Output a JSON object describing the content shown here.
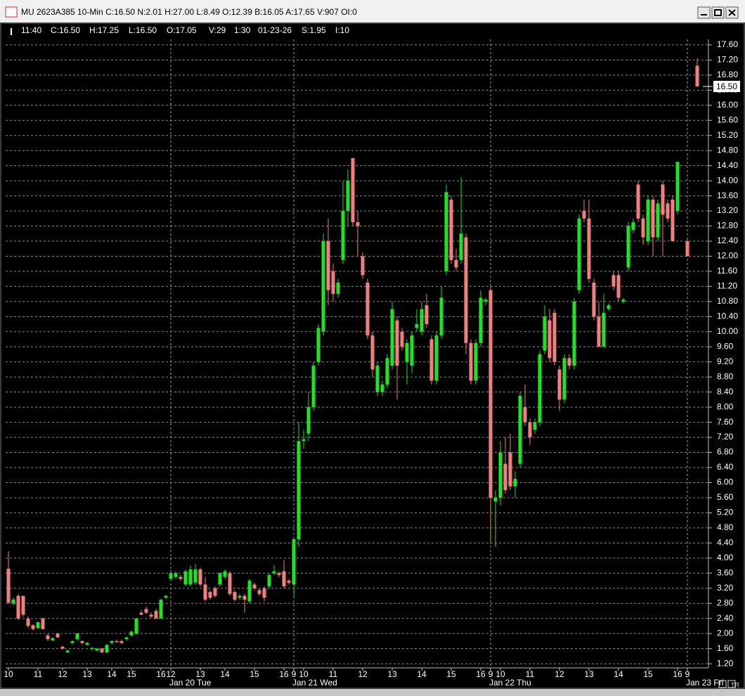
{
  "window": {
    "title": "MU 2623A385 10-Min C:16.50 N:2.01 H:27.00 L:8.49 O:12.39 B:16.05 A:17.65 V:907 OI:0"
  },
  "info_bar": [
    "11:40",
    "C:16.50",
    "H:17.25",
    "L:16.50",
    "O:17.05",
    "V:29",
    "1:30",
    "01-23-26",
    "S:1.95",
    "I:10"
  ],
  "status_tag": "TR",
  "chart_data": {
    "type": "candlestick",
    "up_color": "#22e022",
    "down_color": "#f08080",
    "grid": true,
    "ylim": [
      1.09,
      17.71
    ],
    "yticks": [
      {
        "value": 1.2,
        "label": "1.20"
      },
      {
        "value": 1.6,
        "label": "1.60"
      },
      {
        "value": 2,
        "label": "2.00"
      },
      {
        "value": 2.4,
        "label": "2.40"
      },
      {
        "value": 2.8,
        "label": "2.80"
      },
      {
        "value": 3.2,
        "label": "3.20"
      },
      {
        "value": 3.6,
        "label": "3.60"
      },
      {
        "value": 4,
        "label": "4.00"
      },
      {
        "value": 4.4,
        "label": "4.40"
      },
      {
        "value": 4.8,
        "label": "4.80"
      },
      {
        "value": 5.2,
        "label": "5.20"
      },
      {
        "value": 5.6,
        "label": "5.60"
      },
      {
        "value": 6,
        "label": "6.00"
      },
      {
        "value": 6.4,
        "label": "6.40"
      },
      {
        "value": 6.8,
        "label": "6.80"
      },
      {
        "value": 7.2,
        "label": "7.20"
      },
      {
        "value": 7.6,
        "label": "7.60"
      },
      {
        "value": 8,
        "label": "8.00"
      },
      {
        "value": 8.4,
        "label": "8.40"
      },
      {
        "value": 8.8,
        "label": "8.80"
      },
      {
        "value": 9.2,
        "label": "9.20"
      },
      {
        "value": 9.6,
        "label": "9.60"
      },
      {
        "value": 10,
        "label": "10.00"
      },
      {
        "value": 10.4,
        "label": "10.40"
      },
      {
        "value": 10.8,
        "label": "10.80"
      },
      {
        "value": 11.2,
        "label": "11.20"
      },
      {
        "value": 11.6,
        "label": "11.60"
      },
      {
        "value": 12,
        "label": "12.00"
      },
      {
        "value": 12.4,
        "label": "12.40"
      },
      {
        "value": 12.8,
        "label": "12.80"
      },
      {
        "value": 13.2,
        "label": "13.20"
      },
      {
        "value": 13.6,
        "label": "13.60"
      },
      {
        "value": 14,
        "label": "14.00"
      },
      {
        "value": 14.4,
        "label": "14.40"
      },
      {
        "value": 14.8,
        "label": "14.80"
      },
      {
        "value": 15.2,
        "label": "15.20"
      },
      {
        "value": 15.6,
        "label": "15.60"
      },
      {
        "value": 16,
        "label": "16.00"
      },
      {
        "value": 16.4,
        "label": "16.40"
      },
      {
        "value": 16.8,
        "label": "16.80"
      },
      {
        "value": 17.2,
        "label": "17.20"
      },
      {
        "value": 17.6,
        "label": "17.60"
      }
    ],
    "last_price": {
      "value": 16.5,
      "label": "16.50"
    },
    "categories": [
      "10",
      null,
      null,
      null,
      null,
      null,
      "11",
      null,
      null,
      null,
      null,
      "12",
      null,
      null,
      null,
      null,
      "13",
      null,
      null,
      null,
      null,
      "14",
      null,
      null,
      null,
      "15",
      null,
      null,
      null,
      null,
      null,
      "16",
      null,
      "12",
      null,
      null,
      null,
      null,
      null,
      "13",
      null,
      null,
      null,
      null,
      "14",
      null,
      null,
      null,
      null,
      null,
      "15",
      null,
      null,
      null,
      null,
      null,
      "16",
      null,
      "9",
      null,
      "10",
      null,
      null,
      null,
      null,
      null,
      "11",
      null,
      null,
      null,
      null,
      null,
      "12",
      null,
      null,
      null,
      null,
      null,
      "13",
      null,
      null,
      null,
      null,
      null,
      "14",
      null,
      null,
      null,
      null,
      null,
      "15",
      null,
      null,
      null,
      null,
      null,
      "16",
      null,
      "9",
      null,
      "10",
      null,
      null,
      null,
      null,
      null,
      "11",
      null,
      null,
      null,
      null,
      null,
      "12",
      null,
      null,
      null,
      null,
      null,
      "13",
      null,
      null,
      null,
      null,
      null,
      "14",
      null,
      null,
      null,
      null,
      null,
      "15",
      null,
      null,
      null,
      null,
      null,
      "16",
      null,
      "9",
      null,
      null
    ],
    "day_categories": [
      null,
      null,
      null,
      null,
      null,
      null,
      null,
      null,
      null,
      null,
      null,
      null,
      null,
      null,
      null,
      null,
      null,
      null,
      null,
      null,
      null,
      null,
      null,
      null,
      null,
      null,
      null,
      null,
      null,
      null,
      null,
      null,
      null,
      "Jan 20 Tue",
      null,
      null,
      null,
      null,
      null,
      null,
      null,
      null,
      null,
      null,
      null,
      null,
      null,
      null,
      null,
      null,
      null,
      null,
      null,
      null,
      null,
      null,
      null,
      null,
      "Jan 21 Wed",
      null,
      null,
      null,
      null,
      null,
      null,
      null,
      null,
      null,
      null,
      null,
      null,
      null,
      null,
      null,
      null,
      null,
      null,
      null,
      null,
      null,
      null,
      null,
      null,
      null,
      null,
      null,
      null,
      null,
      null,
      null,
      null,
      null,
      null,
      null,
      null,
      null,
      null,
      null,
      "Jan 22 Thu",
      null,
      null,
      null,
      null,
      null,
      null,
      null,
      null,
      null,
      null,
      null,
      null,
      null,
      null,
      null,
      null,
      null,
      null,
      null,
      null,
      null,
      null,
      null,
      null,
      null,
      null,
      null,
      null,
      null,
      null,
      null,
      null,
      null,
      null,
      null,
      null,
      null,
      null,
      null,
      "Jan 23 Fri",
      null,
      null
    ],
    "open": [
      3.72,
      2.8,
      3.0,
      3.0,
      2.4,
      2.22,
      2.15,
      2.4,
      1.95,
      1.82,
      2.0,
      1.65,
      1.5,
      1.75,
      1.85,
      1.8,
      1.7,
      1.6,
      1.55,
      1.6,
      1.5,
      1.75,
      1.8,
      1.8,
      1.85,
      1.95,
      2.0,
      2.55,
      2.65,
      2.5,
      2.6,
      2.4,
      2.95,
      3.45,
      3.5,
      3.5,
      3.3,
      3.3,
      3.35,
      3.7,
      3.3,
      3.1,
      3.2,
      3.3,
      3.5,
      3.6,
      3.1,
      2.95,
      3.0,
      2.85,
      3.3,
      3.15,
      3.2,
      3.25,
      3.6,
      3.6,
      3.65,
      3.4,
      3.3,
      4.5,
      7.1,
      7.3,
      8.0,
      9.2,
      10.0,
      12.4,
      11.6,
      11.0,
      11.9,
      13.2,
      14.6,
      12.9,
      12.0,
      11.3,
      9.9,
      8.4,
      8.4,
      8.6,
      9.1,
      10.3,
      10.0,
      9.2,
      9.1,
      10.1,
      10.0,
      10.7,
      9.8,
      8.7,
      9.9,
      11.6,
      13.5,
      11.9,
      11.9,
      12.5,
      9.7,
      8.7,
      9.7,
      10.8,
      11.1,
      5.5,
      5.6,
      6.5,
      6.8,
      5.9,
      6.5,
      8.0,
      7.6,
      7.4,
      7.6,
      9.5,
      10.3,
      10.5,
      9.0,
      8.2,
      9.3,
      9.1,
      11.1,
      13.2,
      13.0,
      11.3,
      10.4,
      9.6,
      10.6,
      11.5,
      11.5,
      10.8,
      11.7,
      12.7,
      13.9,
      13.0,
      12.4,
      13.5,
      12.5,
      13.9,
      13.4,
      13.5,
      13.2,
      null,
      12.4,
      null,
      17.05
    ],
    "high": [
      4.18,
      2.95,
      3.05,
      3.0,
      2.45,
      2.25,
      2.32,
      2.42,
      2.0,
      1.9,
      2.02,
      1.68,
      1.58,
      1.82,
      2.02,
      1.82,
      1.78,
      1.64,
      1.62,
      1.62,
      1.72,
      1.82,
      1.84,
      1.84,
      1.92,
      2.08,
      2.42,
      2.62,
      2.72,
      2.56,
      2.65,
      2.92,
      3.02,
      3.68,
      3.65,
      3.55,
      3.7,
      3.8,
      3.85,
      3.75,
      3.5,
      3.15,
      3.25,
      3.62,
      3.7,
      3.65,
      3.15,
      3.05,
      3.05,
      3.45,
      3.35,
      3.2,
      3.25,
      3.6,
      3.8,
      3.65,
      3.95,
      3.45,
      4.5,
      7.6,
      7.4,
      8.4,
      9.2,
      10.2,
      12.6,
      13.0,
      11.8,
      11.4,
      14.0,
      14.3,
      14.6,
      13.2,
      12.1,
      11.4,
      10.0,
      9.2,
      8.7,
      9.4,
      10.8,
      10.4,
      10.1,
      9.8,
      10.0,
      10.6,
      10.8,
      11.0,
      9.9,
      10.0,
      11.2,
      13.9,
      13.6,
      12.2,
      14.1,
      12.6,
      9.8,
      9.8,
      11.1,
      10.9,
      11.2,
      5.8,
      7.1,
      7.2,
      7.3,
      6.3,
      8.4,
      8.6,
      7.7,
      7.7,
      9.5,
      10.7,
      10.6,
      10.6,
      9.1,
      9.4,
      9.4,
      10.9,
      13.1,
      13.5,
      13.5,
      11.4,
      10.8,
      11.0,
      10.75,
      11.6,
      11.6,
      10.9,
      12.9,
      13.0,
      14.0,
      13.1,
      13.6,
      13.6,
      13.5,
      14.0,
      13.5,
      13.6,
      14.5,
      null,
      12.5,
      null,
      17.25
    ],
    "low": [
      2.78,
      2.75,
      2.35,
      2.45,
      2.15,
      2.08,
      2.12,
      2.1,
      1.8,
      1.8,
      1.88,
      1.58,
      1.48,
      1.72,
      1.82,
      1.72,
      1.68,
      1.56,
      1.52,
      1.48,
      1.48,
      1.72,
      1.76,
      1.72,
      1.82,
      1.92,
      1.98,
      2.48,
      2.52,
      2.42,
      2.38,
      2.38,
      2.92,
      3.4,
      3.45,
      3.4,
      3.25,
      3.25,
      3.3,
      3.25,
      2.85,
      2.9,
      2.95,
      3.25,
      3.45,
      3.0,
      2.85,
      2.9,
      2.55,
      2.8,
      3.15,
      3.0,
      2.85,
      3.2,
      3.55,
      3.5,
      3.2,
      3.3,
      3.0,
      4.3,
      6.9,
      7.1,
      7.9,
      9.1,
      9.9,
      10.7,
      10.8,
      10.9,
      11.8,
      12.8,
      12.8,
      12.0,
      11.4,
      9.8,
      8.8,
      8.3,
      8.3,
      8.5,
      9.0,
      8.2,
      9.5,
      8.6,
      8.9,
      10.0,
      9.9,
      10.1,
      8.6,
      8.6,
      9.8,
      11.5,
      11.8,
      11.6,
      11.8,
      9.4,
      8.6,
      8.6,
      9.6,
      10.7,
      4.4,
      4.3,
      5.4,
      5.7,
      5.8,
      5.6,
      6.4,
      7.5,
      7.0,
      7.3,
      7.5,
      9.4,
      9.2,
      9.1,
      7.9,
      8.1,
      9.0,
      9.0,
      11.0,
      12.9,
      11.3,
      10.3,
      9.6,
      9.6,
      10.55,
      11.1,
      10.8,
      10.75,
      11.6,
      12.6,
      12.9,
      12.3,
      12.3,
      12.0,
      12.4,
      12.0,
      12.9,
      12.4,
      13.1,
      null,
      12.0,
      null,
      16.5
    ],
    "close": [
      2.82,
      2.9,
      2.4,
      2.5,
      2.2,
      2.12,
      2.3,
      2.12,
      1.85,
      1.88,
      1.9,
      1.6,
      1.55,
      1.8,
      2.0,
      1.75,
      1.75,
      1.62,
      1.6,
      1.5,
      1.7,
      1.8,
      1.78,
      1.75,
      1.9,
      2.05,
      2.4,
      2.5,
      2.55,
      2.45,
      2.4,
      2.9,
      3.0,
      3.6,
      3.6,
      3.45,
      3.65,
      3.7,
      3.7,
      3.3,
      2.9,
      2.95,
      3.0,
      3.6,
      3.65,
      3.05,
      2.9,
      3.0,
      2.9,
      3.4,
      3.2,
      3.05,
      2.95,
      3.55,
      3.65,
      3.55,
      3.25,
      3.35,
      4.5,
      7.1,
      7.15,
      8.0,
      9.1,
      10.1,
      12.4,
      11.1,
      11.0,
      11.3,
      13.2,
      14.0,
      12.9,
      12.8,
      11.5,
      9.9,
      9.0,
      9.1,
      8.6,
      9.3,
      10.6,
      9.1,
      9.6,
      9.7,
      9.9,
      10.2,
      10.6,
      10.2,
      8.7,
      9.9,
      10.9,
      13.7,
      11.9,
      11.7,
      12.6,
      9.7,
      8.7,
      9.7,
      10.9,
      10.85,
      5.6,
      5.6,
      6.8,
      5.8,
      5.9,
      6.1,
      8.3,
      7.6,
      7.2,
      7.6,
      9.4,
      10.4,
      9.3,
      9.2,
      8.2,
      9.3,
      9.1,
      10.8,
      13.0,
      13.0,
      11.4,
      10.4,
      9.6,
      10.5,
      10.7,
      11.2,
      10.9,
      10.85,
      12.8,
      12.9,
      13.0,
      12.5,
      13.5,
      12.5,
      13.4,
      13.1,
      13.0,
      12.4,
      14.5,
      null,
      12.0,
      null,
      16.5
    ]
  }
}
